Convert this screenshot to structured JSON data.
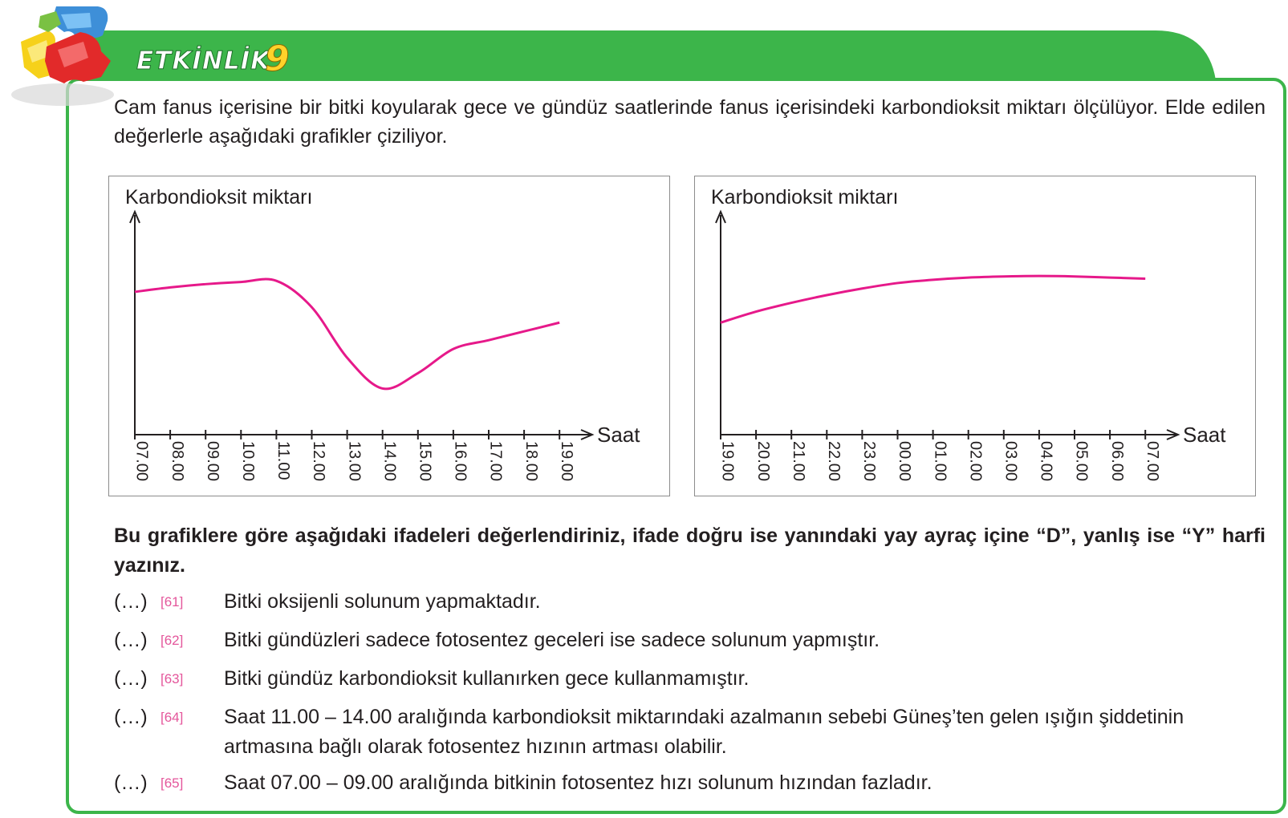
{
  "header": {
    "title": "ETKİNLİK",
    "number": "9",
    "colors": {
      "green": "#3cb54a",
      "accent": "#ffd22a"
    }
  },
  "intro": "Cam fanus içerisine bir bitki koyularak gece ve gündüz saatlerinde fanus içerisindeki karbondioksit miktarı ölçülüyor. Elde edilen değerlerle aşağıdaki grafikler çiziliyor.",
  "chart_data": [
    {
      "type": "line",
      "ylabel": "Karbondioksit miktarı",
      "xlabel": "Saat",
      "categories": [
        "07.00",
        "08.00",
        "09.00",
        "10.00",
        "11.00",
        "12.00",
        "13.00",
        "14.00",
        "15.00",
        "16.00",
        "17.00",
        "18.00",
        "19.00"
      ],
      "series": [
        {
          "values": [
            0.65,
            0.67,
            0.685,
            0.695,
            0.7,
            0.58,
            0.35,
            0.21,
            0.28,
            0.39,
            0.43,
            0.47,
            0.51
          ],
          "color": "#e6198a"
        }
      ]
    },
    {
      "type": "line",
      "ylabel": "Karbondioksit miktarı",
      "xlabel": "Saat",
      "categories": [
        "19.00",
        "20.00",
        "21.00",
        "22.00",
        "23.00",
        "00.00",
        "01.00",
        "02.00",
        "03.00",
        "04.00",
        "05.00",
        "06.00",
        "07.00"
      ],
      "series": [
        {
          "values": [
            0.51,
            0.56,
            0.6,
            0.635,
            0.665,
            0.69,
            0.705,
            0.715,
            0.72,
            0.722,
            0.72,
            0.715,
            0.71
          ],
          "color": "#e6198a"
        }
      ]
    }
  ],
  "question": "Bu grafiklere göre aşağıdaki ifadeleri değerlendiriniz, ifade doğru ise yanındaki yay ayraç içine “D”, yanlış ise “Y” harfi yazınız.",
  "items": [
    {
      "paren": "(…)",
      "num": "[61]",
      "text": "Bitki oksijenli solunum yapmaktadır."
    },
    {
      "paren": "(…)",
      "num": "[62]",
      "text": "Bitki gündüzleri sadece fotosentez geceleri ise sadece solunum yapmıştır."
    },
    {
      "paren": "(…)",
      "num": "[63]",
      "text": "Bitki gündüz karbondioksit kullanırken gece kullanmamıştır."
    },
    {
      "paren": "(…)",
      "num": "[64]",
      "text": "Saat 11.00 – 14.00 aralığında karbondioksit miktarındaki azalmanın sebebi Güneş’ten gelen ışığın şiddetinin artmasına bağlı olarak fotosentez hızının artması olabilir."
    },
    {
      "paren": "(…)",
      "num": "[65]",
      "text": "Saat 07.00 – 09.00 aralığında bitkinin fotosentez hızı solunum hızından fazladır."
    }
  ]
}
